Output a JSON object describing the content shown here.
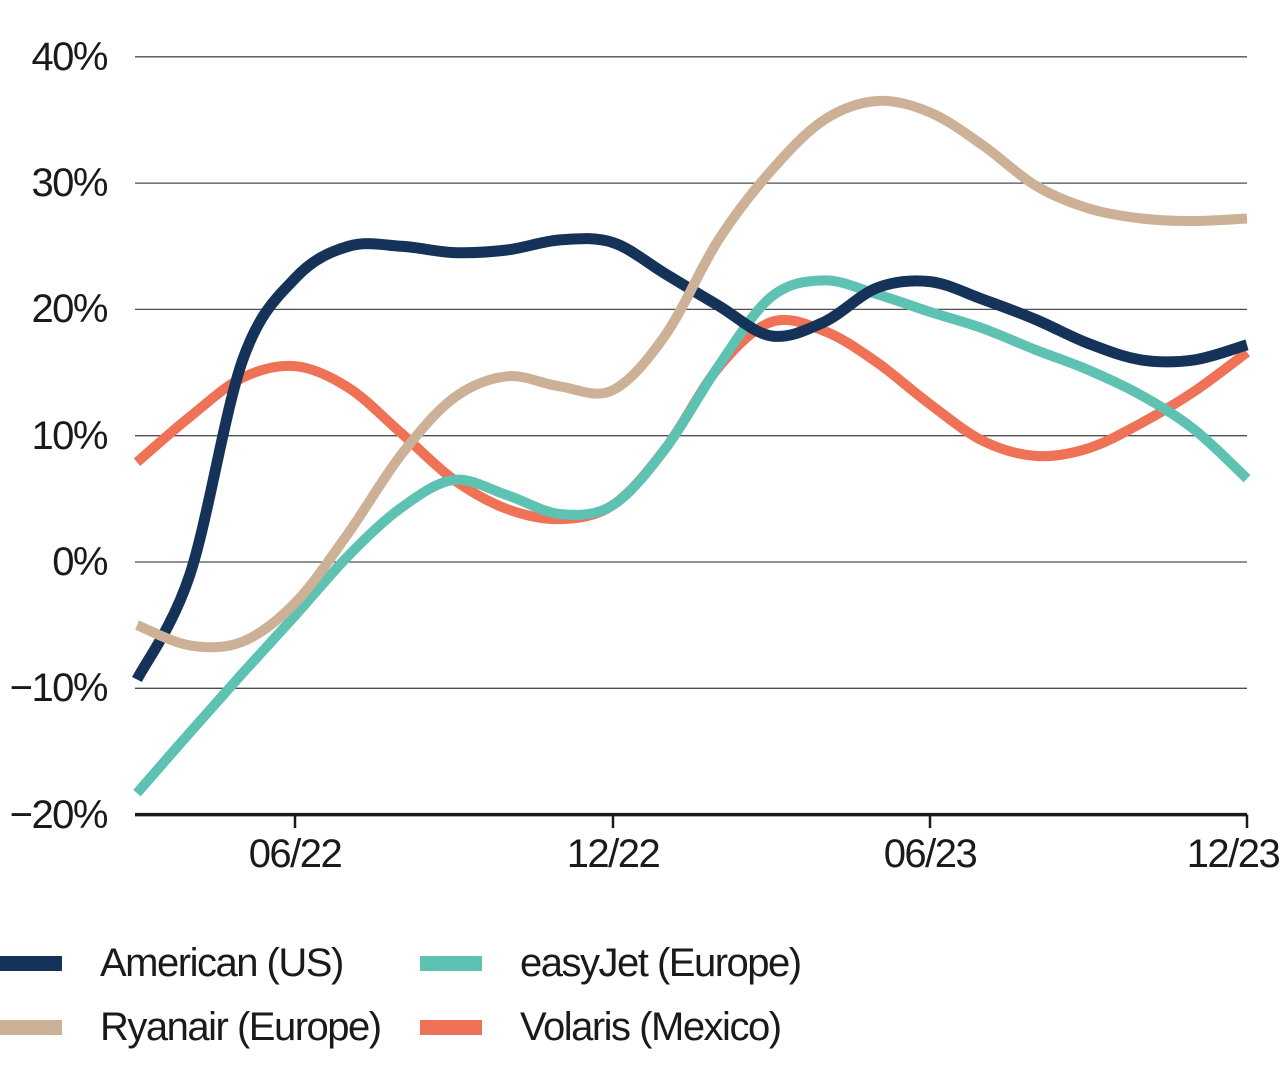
{
  "chart_data": {
    "type": "line",
    "title": "",
    "xlabel": "",
    "ylabel": "",
    "ylim": [
      -20,
      40
    ],
    "grid": "horizontal",
    "legend_position": "bottom-left",
    "y_tick_labels": [
      "40%",
      "30%",
      "20%",
      "10%",
      "0%",
      "−10%",
      "−20%"
    ],
    "y_tick_values": [
      40,
      30,
      20,
      10,
      0,
      -10,
      -20
    ],
    "x_tick_labels": [
      "06/22",
      "12/22",
      "06/23",
      "12/23"
    ],
    "months": [
      "03/22",
      "04/22",
      "05/22",
      "06/22",
      "07/22",
      "08/22",
      "09/22",
      "10/22",
      "11/22",
      "12/22",
      "01/23",
      "02/23",
      "03/23",
      "04/23",
      "05/23",
      "06/23",
      "07/23",
      "08/23",
      "09/23",
      "10/23",
      "11/23",
      "12/23"
    ],
    "unit": "%",
    "series": [
      {
        "name": "American (US)",
        "color": "#153359",
        "values": [
          -9.3,
          -1.0,
          16.0,
          22.5,
          25.0,
          25.0,
          24.5,
          24.7,
          25.5,
          25.3,
          22.8,
          20.3,
          17.9,
          19.0,
          21.7,
          22.2,
          20.8,
          19.2,
          17.3,
          16.0,
          16.0,
          17.2
        ]
      },
      {
        "name": "easyJet (Europe)",
        "color": "#5ec2b2",
        "values": [
          -18.3,
          -13.5,
          -8.8,
          -4.2,
          0.5,
          4.3,
          6.5,
          5.3,
          3.8,
          4.5,
          9.0,
          15.5,
          21.0,
          22.3,
          21.2,
          19.8,
          18.5,
          16.8,
          15.2,
          13.2,
          10.5,
          6.6
        ]
      },
      {
        "name": "Ryanair (Europe)",
        "color": "#cdb197",
        "values": [
          -5.0,
          -6.6,
          -6.3,
          -3.2,
          2.3,
          8.5,
          13.0,
          14.7,
          13.9,
          13.6,
          18.0,
          25.5,
          31.0,
          35.0,
          36.5,
          35.6,
          33.0,
          29.8,
          28.0,
          27.2,
          27.0,
          27.2
        ]
      },
      {
        "name": "Volaris (Mexico)",
        "color": "#ef7156",
        "values": [
          7.9,
          11.5,
          14.6,
          15.5,
          13.8,
          10.2,
          6.5,
          4.2,
          3.4,
          4.5,
          9.0,
          15.4,
          19.0,
          18.3,
          15.8,
          12.5,
          9.6,
          8.4,
          9.0,
          11.0,
          13.5,
          16.6
        ]
      }
    ],
    "colors": {
      "gridline": "#4f4f4f",
      "axis": "#1a1a1a",
      "text": "#1a1a1a",
      "background": "#ffffff"
    }
  },
  "legend": {
    "items": [
      {
        "label": "American (US)"
      },
      {
        "label": "easyJet (Europe)"
      },
      {
        "label": "Ryanair (Europe)"
      },
      {
        "label": "Volaris (Mexico)"
      }
    ]
  }
}
